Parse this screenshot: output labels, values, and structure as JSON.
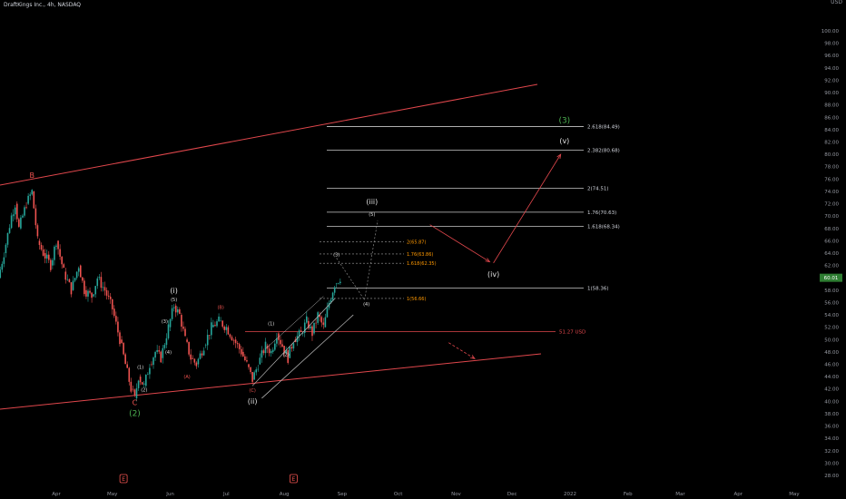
{
  "header": {
    "title": "DraftKings Inc., 4h, NASDAQ",
    "currency": "USD"
  },
  "colors": {
    "background": "#000000",
    "bull": "#26a69a",
    "bear": "#ef5350",
    "channel": "#e0474c",
    "fib_line": "#c8c8c8",
    "fib_label_orange": "#ff9800",
    "wave_green": "#4caf50",
    "price_badge": "#2e7d32"
  },
  "chart_data": {
    "type": "candlestick",
    "symbol": "DraftKings Inc.",
    "timeframe": "4h",
    "exchange": "NASDAQ",
    "y_axis": {
      "range": [
        27,
        101
      ],
      "ticks": [
        28,
        30,
        32,
        34,
        36,
        38,
        40,
        42,
        44,
        46,
        48,
        50,
        52,
        54,
        56,
        58,
        60,
        62,
        64,
        66,
        68,
        70,
        72,
        74,
        76,
        78,
        80,
        82,
        84,
        86,
        88,
        90,
        92,
        94,
        96,
        98,
        100
      ],
      "tick_labels": [
        "28.00",
        "30.00",
        "32.00",
        "34.00",
        "36.00",
        "38.00",
        "40.00",
        "42.00",
        "44.00",
        "46.00",
        "48.00",
        "50.00",
        "52.00",
        "54.00",
        "56.00",
        "58.00",
        "60.00",
        "62.00",
        "64.00",
        "66.00",
        "68.00",
        "70.00",
        "72.00",
        "74.00",
        "76.00",
        "78.00",
        "80.00",
        "82.00",
        "84.00",
        "86.00",
        "88.00",
        "90.00",
        "92.00",
        "94.00",
        "96.00",
        "98.00",
        "100.00"
      ]
    },
    "x_axis": {
      "tick_labels": [
        "Apr",
        "May",
        "Jun",
        "Jul",
        "Aug",
        "Sep",
        "Oct",
        "Nov",
        "Dec",
        "2022",
        "Feb",
        "Mar",
        "Apr",
        "May"
      ],
      "tick_dates": [
        "2021-04-01",
        "2021-05-01",
        "2021-06-01",
        "2021-07-01",
        "2021-08-01",
        "2021-09-01",
        "2021-10-01",
        "2021-11-01",
        "2021-12-01",
        "2022-01-01",
        "2022-02-01",
        "2022-03-01",
        "2022-04-01",
        "2022-05-01"
      ]
    },
    "last_price": 60.01,
    "last_price_label": "60.01",
    "price_path": [
      {
        "date": "2021-03-01",
        "price": 60
      },
      {
        "date": "2021-03-04",
        "price": 64
      },
      {
        "date": "2021-03-08",
        "price": 70
      },
      {
        "date": "2021-03-10",
        "price": 72
      },
      {
        "date": "2021-03-12",
        "price": 68
      },
      {
        "date": "2021-03-16",
        "price": 72
      },
      {
        "date": "2021-03-19",
        "price": 74
      },
      {
        "date": "2021-03-22",
        "price": 66
      },
      {
        "date": "2021-03-25",
        "price": 64
      },
      {
        "date": "2021-03-29",
        "price": 62
      },
      {
        "date": "2021-04-01",
        "price": 66
      },
      {
        "date": "2021-04-05",
        "price": 61
      },
      {
        "date": "2021-04-09",
        "price": 58
      },
      {
        "date": "2021-04-13",
        "price": 62
      },
      {
        "date": "2021-04-16",
        "price": 58
      },
      {
        "date": "2021-04-20",
        "price": 57
      },
      {
        "date": "2021-04-23",
        "price": 60
      },
      {
        "date": "2021-04-27",
        "price": 58
      },
      {
        "date": "2021-05-01",
        "price": 55
      },
      {
        "date": "2021-05-05",
        "price": 50
      },
      {
        "date": "2021-05-08",
        "price": 46
      },
      {
        "date": "2021-05-11",
        "price": 42
      },
      {
        "date": "2021-05-13",
        "price": 40.5
      },
      {
        "date": "2021-05-15",
        "price": 44
      },
      {
        "date": "2021-05-18",
        "price": 42.5
      },
      {
        "date": "2021-05-21",
        "price": 46
      },
      {
        "date": "2021-05-24",
        "price": 48
      },
      {
        "date": "2021-05-27",
        "price": 47
      },
      {
        "date": "2021-05-31",
        "price": 52
      },
      {
        "date": "2021-06-03",
        "price": 55.5
      },
      {
        "date": "2021-06-06",
        "price": 54
      },
      {
        "date": "2021-06-09",
        "price": 50
      },
      {
        "date": "2021-06-12",
        "price": 47
      },
      {
        "date": "2021-06-15",
        "price": 46
      },
      {
        "date": "2021-06-19",
        "price": 49
      },
      {
        "date": "2021-06-23",
        "price": 52
      },
      {
        "date": "2021-06-27",
        "price": 53
      },
      {
        "date": "2021-07-01",
        "price": 52
      },
      {
        "date": "2021-07-05",
        "price": 50
      },
      {
        "date": "2021-07-09",
        "price": 48
      },
      {
        "date": "2021-07-12",
        "price": 46
      },
      {
        "date": "2021-07-15",
        "price": 43.5
      },
      {
        "date": "2021-07-18",
        "price": 46
      },
      {
        "date": "2021-07-22",
        "price": 49
      },
      {
        "date": "2021-07-25",
        "price": 48
      },
      {
        "date": "2021-07-28",
        "price": 51
      },
      {
        "date": "2021-07-31",
        "price": 49
      },
      {
        "date": "2021-08-03",
        "price": 47
      },
      {
        "date": "2021-08-06",
        "price": 50
      },
      {
        "date": "2021-08-10",
        "price": 51
      },
      {
        "date": "2021-08-13",
        "price": 53
      },
      {
        "date": "2021-08-16",
        "price": 51
      },
      {
        "date": "2021-08-19",
        "price": 54
      },
      {
        "date": "2021-08-22",
        "price": 52
      },
      {
        "date": "2021-08-25",
        "price": 56
      },
      {
        "date": "2021-08-28",
        "price": 59
      },
      {
        "date": "2021-08-31",
        "price": 60
      }
    ],
    "fib_levels": [
      {
        "label": "2.618(84.49)",
        "value": 84.49
      },
      {
        "label": "2.382(80.68)",
        "value": 80.68
      },
      {
        "label": "2(74.51)",
        "value": 74.51
      },
      {
        "label": "1.76(70.63)",
        "value": 70.63
      },
      {
        "label": "1.618(68.34)",
        "value": 68.34
      },
      {
        "label": "1(58.36)",
        "value": 58.36
      }
    ],
    "fib_levels_small": [
      {
        "label": "2(65.87)",
        "value": 65.87
      },
      {
        "label": "1.76(63.86)",
        "value": 63.86
      },
      {
        "label": "1.618(62.35)",
        "value": 62.35
      },
      {
        "label": "1(56.66)",
        "value": 56.66
      }
    ],
    "price_line": {
      "label": "51.27 USD",
      "value": 51.27
    },
    "wave_labels": [
      {
        "text": "B",
        "date": "2021-03-19",
        "price": 76.2,
        "color": "red"
      },
      {
        "text": "C",
        "date": "2021-05-13",
        "price": 39.4,
        "color": "red"
      },
      {
        "text": "(2)",
        "date": "2021-05-13",
        "price": 37.6,
        "color": "green"
      },
      {
        "text": "(i)",
        "date": "2021-06-03",
        "price": 57.5,
        "color": "white"
      },
      {
        "text": "(ii)",
        "date": "2021-07-15",
        "price": 39.6,
        "color": "white"
      },
      {
        "text": "(iii)",
        "date": "2021-09-17",
        "price": 71.9,
        "color": "white"
      },
      {
        "text": "(iv)",
        "date": "2021-11-21",
        "price": 60.2,
        "color": "white"
      },
      {
        "text": "(v)",
        "date": "2021-12-29",
        "price": 81.8,
        "color": "white"
      },
      {
        "text": "(3)",
        "date": "2021-12-29",
        "price": 85.1,
        "color": "green"
      },
      {
        "text": "(1)",
        "date": "2021-05-16",
        "price": 45.3,
        "color": "white"
      },
      {
        "text": "(2)",
        "date": "2021-05-18",
        "price": 41.6,
        "color": "white"
      },
      {
        "text": "(3)",
        "date": "2021-05-29",
        "price": 52.7,
        "color": "white"
      },
      {
        "text": "(4)",
        "date": "2021-05-31",
        "price": 47.7,
        "color": "white"
      },
      {
        "text": "(5)",
        "date": "2021-06-03",
        "price": 56.2,
        "color": "white"
      },
      {
        "text": "(A)",
        "date": "2021-06-10",
        "price": 43.7,
        "color": "red"
      },
      {
        "text": "(B)",
        "date": "2021-06-28",
        "price": 55.0,
        "color": "red"
      },
      {
        "text": "(C)",
        "date": "2021-07-15",
        "price": 41.5,
        "color": "red"
      },
      {
        "text": "(1)",
        "date": "2021-07-25",
        "price": 52.3,
        "color": "white"
      },
      {
        "text": "(2)",
        "date": "2021-08-02",
        "price": 47.3,
        "color": "white"
      },
      {
        "text": "(3)",
        "date": "2021-08-29",
        "price": 63.5,
        "color": "white"
      },
      {
        "text": "(4)",
        "date": "2021-09-14",
        "price": 55.5,
        "color": "white"
      },
      {
        "text": "(5)",
        "date": "2021-09-17",
        "price": 70.0,
        "color": "white"
      }
    ],
    "earnings_markers": [
      {
        "date": "2021-05-07",
        "label": "E"
      },
      {
        "date": "2021-08-06",
        "label": "E"
      }
    ]
  }
}
